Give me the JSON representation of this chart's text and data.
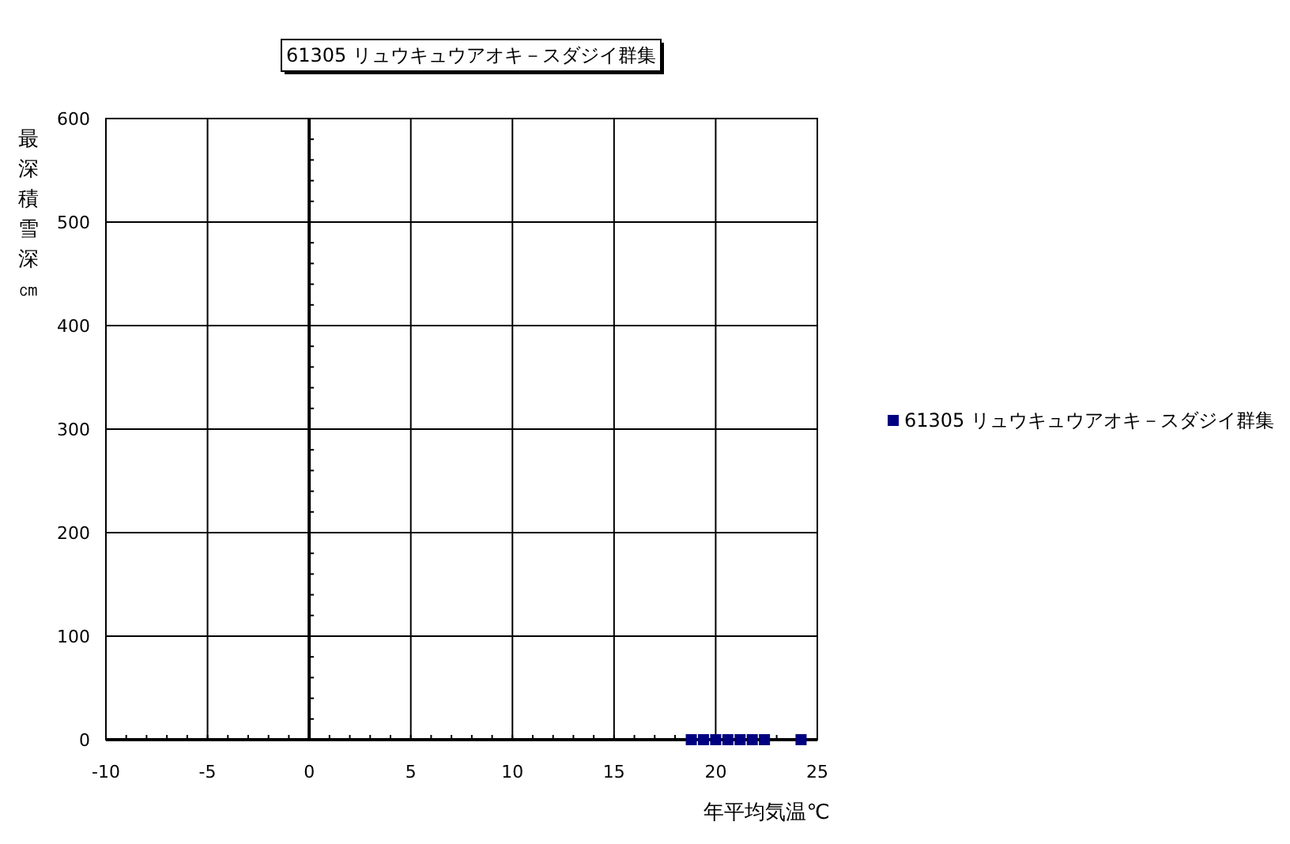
{
  "chart_data": {
    "type": "scatter",
    "title": "61305 リュウキュウアオキ－スダジイ群集",
    "xlabel": "年平均気温℃",
    "ylabel": "最深積雪深㎝",
    "xlim": [
      -10,
      25
    ],
    "xticks": [
      -10,
      -5,
      0,
      5,
      10,
      15,
      20,
      25
    ],
    "ylim": [
      0,
      600
    ],
    "yticks": [
      0,
      100,
      200,
      300,
      400,
      500,
      600
    ],
    "grid": true,
    "legend": "right",
    "marker": "square",
    "series": [
      {
        "name": "61305 リュウキュウアオキ－スダジイ群集",
        "color": "#000080",
        "x": [
          18.8,
          19.4,
          20.0,
          20.6,
          21.2,
          21.8,
          22.4,
          24.2
        ],
        "values": [
          0,
          0,
          0,
          0,
          0,
          0,
          0,
          0
        ]
      }
    ]
  }
}
